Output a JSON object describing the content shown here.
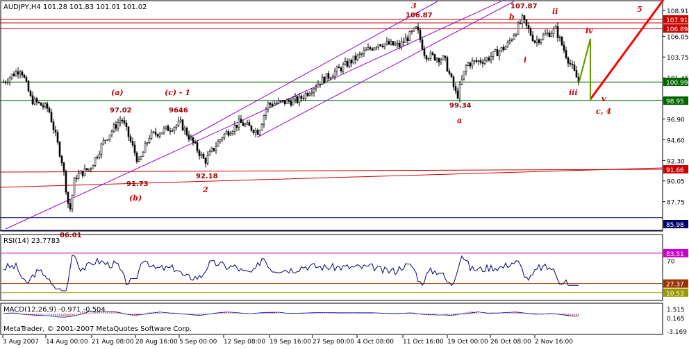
{
  "chart_data": {
    "type": "candlestick",
    "symbol_header": "AUDJPY,H4  101.28 101.83 101.01 101.02",
    "footer_text": "MetaTrader, © 2001-2007 MetaQuotes Software Corp.",
    "price_panel": {
      "ylim": [
        85.2,
        109.6
      ],
      "y_ticks": [
        "108.91",
        "106.05",
        "103.75",
        "101.45",
        "99.15",
        "96.90",
        "94.60",
        "92.30",
        "90.05",
        "87.75"
      ],
      "x_labels": [
        "3 Aug 2007",
        "14 Aug 00:00",
        "21 Aug 08:00",
        "28 Aug 16:00",
        "5 Sep 00:00",
        "12 Sep 08:00",
        "19 Sep 16:00",
        "27 Sep 00:00",
        "4 Oct 08:00",
        "11 Oct 16:00",
        "19 Oct 00:00",
        "26 Oct 08:00",
        "2 Nov 16:00"
      ],
      "price_markers": [
        {
          "value": "107.91",
          "color": "#cc0000"
        },
        {
          "value": "106.89",
          "color": "#cc0000"
        },
        {
          "value": "100.99",
          "color": "#006600"
        },
        {
          "value": "98.95",
          "color": "#006600"
        },
        {
          "value": "91.66",
          "color": "#cc0000"
        },
        {
          "value": "85.98",
          "color": "#000066"
        }
      ],
      "horizontal_levels": [
        {
          "price": 107.91,
          "color": "#cc0000"
        },
        {
          "price": 106.89,
          "color": "#cc0000"
        },
        {
          "price": 100.99,
          "color": "#006600"
        },
        {
          "price": 98.95,
          "color": "#006600"
        },
        {
          "price": 91.66,
          "color": "#cc0000"
        },
        {
          "price": 85.98,
          "color": "#000066"
        }
      ],
      "price_labels": [
        "97.02",
        "9646",
        "91.73",
        "92.18",
        "106.87",
        "107.87",
        "99.34",
        "86.01"
      ],
      "wave_labels": [
        "(a)",
        "(c) - 1",
        "(b)",
        "2",
        "3",
        "b",
        "ii",
        "i",
        "iii",
        "iv",
        "v",
        "a",
        "c, 4",
        "5"
      ]
    },
    "rsi_panel": {
      "label": "RSI(14) 23.7783",
      "y_ticks": [
        "70"
      ],
      "levels": [
        {
          "value": "83.51",
          "color": "#cc00cc"
        },
        {
          "value": "27.37",
          "color": "#993300"
        },
        {
          "value": "10.53",
          "color": "#999900"
        }
      ]
    },
    "macd_panel": {
      "label": "MACD(12,26,9) -0.971 -0.504",
      "y_ticks": [
        "1.515",
        "0.165",
        "-3.169"
      ]
    }
  }
}
